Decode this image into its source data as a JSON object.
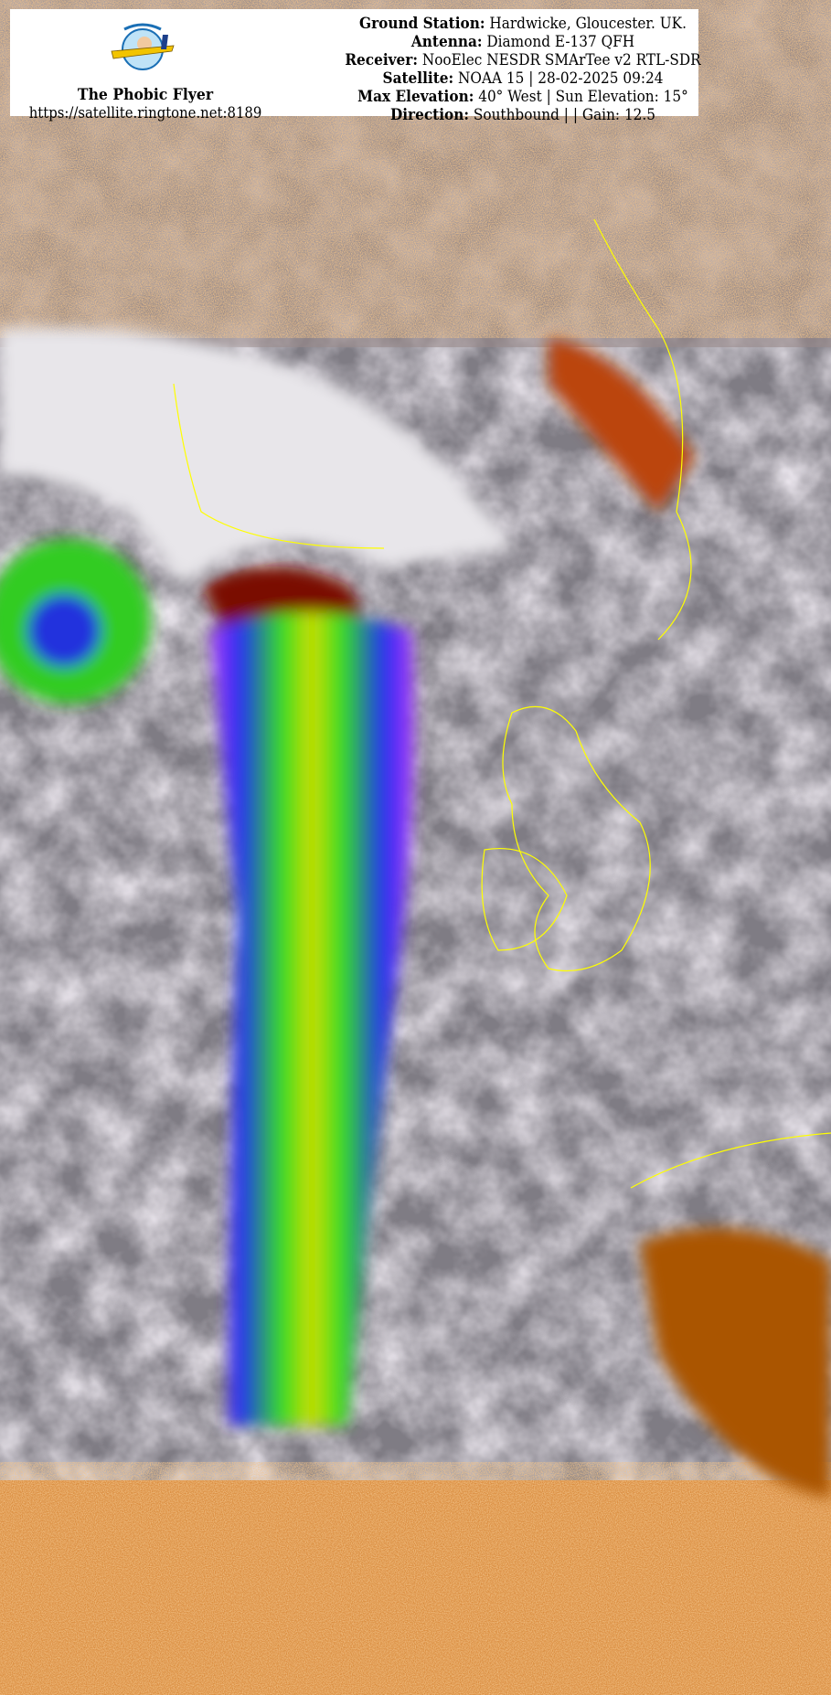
{
  "header": {
    "brand_name": "The Phobic Flyer",
    "url": "https://satellite.ringtone.net:8189",
    "logo_text": "The Phobic Flyer",
    "rows": [
      {
        "label": "Ground Station:",
        "value": "Hardwicke, Gloucester. UK."
      },
      {
        "label": "Antenna:",
        "value": "Diamond E-137 QFH"
      },
      {
        "label": "Receiver:",
        "value": "NooElec NESDR SMArTee v2 RTL-SDR"
      },
      {
        "label": "Satellite:",
        "value": "NOAA 15 | 28-02-2025 09:24"
      },
      {
        "label": "Max Elevation:",
        "value": "40° West | Sun Elevation: 15°"
      },
      {
        "label": "Direction:",
        "value": "Southbound | | Gain: 12.5"
      }
    ]
  },
  "image": {
    "type": "NOAA APT satellite image, false-colour thermal enhancement",
    "colors": {
      "noise": "#e0903a",
      "cloud_light": "#d8d0dc",
      "sea_gray": "#7d7a80",
      "coastline": "#ffff00",
      "cold_green": "#33dd22",
      "cold_red": "#cc1100",
      "cold_blue": "#2222ee",
      "cold_purple": "#aa33ff"
    }
  }
}
